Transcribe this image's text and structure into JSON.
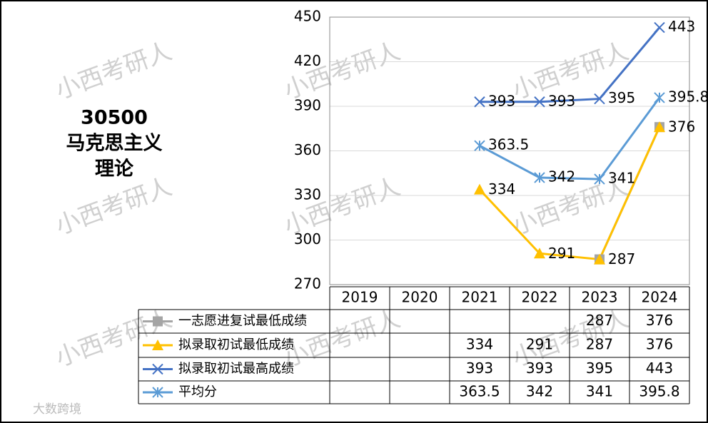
{
  "chart_data": {
    "type": "line",
    "title": [
      "30500",
      "马克思主义",
      "理论"
    ],
    "watermark": "小西考研人",
    "logo": "大数跨境",
    "categories": [
      "2019",
      "2020",
      "2021",
      "2022",
      "2023",
      "2024"
    ],
    "ylim": [
      270,
      450
    ],
    "yticks": [
      270,
      300,
      330,
      360,
      390,
      420,
      450
    ],
    "grid": true,
    "series": [
      {
        "name": "一志愿进复试最低成绩",
        "color": "#a5a5a5",
        "marker": "square",
        "values": [
          null,
          null,
          null,
          null,
          287,
          376
        ]
      },
      {
        "name": "拟录取初试最低成绩",
        "color": "#ffc000",
        "marker": "triangle",
        "values": [
          null,
          null,
          334,
          291,
          287,
          376
        ]
      },
      {
        "name": "拟录取初试最高成绩",
        "color": "#4472c4",
        "marker": "x",
        "values": [
          null,
          null,
          393,
          393,
          395,
          443
        ]
      },
      {
        "name": "平均分",
        "color": "#5b9bd5",
        "marker": "star",
        "values": [
          null,
          null,
          363.5,
          342,
          341,
          395.8
        ]
      }
    ]
  }
}
